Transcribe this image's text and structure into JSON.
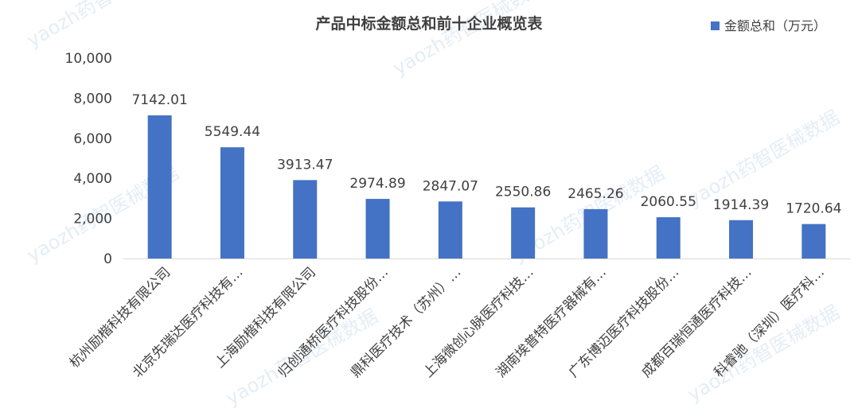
{
  "chart_data": {
    "type": "bar",
    "title": "产品中标金额总和前十企业概览表",
    "xlabel": "",
    "ylabel": "",
    "legend": {
      "label": "金额总和（万元）",
      "position": "top-right"
    },
    "ylim": [
      0,
      10000
    ],
    "yticks": [
      "0",
      "2,000",
      "4,000",
      "6,000",
      "8,000",
      "10,000"
    ],
    "grid": false,
    "categories": [
      "杭州励楷科技有限公司",
      "北京先瑞达医疗科技有…",
      "上海励楷科技有限公司",
      "归创通桥医疗科技股份…",
      "鼎科医疗技术（苏州）…",
      "上海微创心脉医疗科技…",
      "湖南埃普特医疗器械有…",
      "广东博迈医疗科技股份…",
      "成都百瑞恒通医疗科技…",
      "科睿驰（深圳）医疗科…"
    ],
    "series": [
      {
        "name": "金额总和（万元）",
        "values": [
          7142.01,
          5549.44,
          3913.47,
          2974.89,
          2847.07,
          2550.86,
          2465.26,
          2060.55,
          1914.39,
          1720.64
        ],
        "labels": [
          "7142.01",
          "5549.44",
          "3913.47",
          "2974.89",
          "2847.07",
          "2550.86",
          "2465.26",
          "2060.55",
          "1914.39",
          "1720.64"
        ],
        "color": "#4472C4"
      }
    ]
  },
  "watermark": "yaozh药智医械数据"
}
